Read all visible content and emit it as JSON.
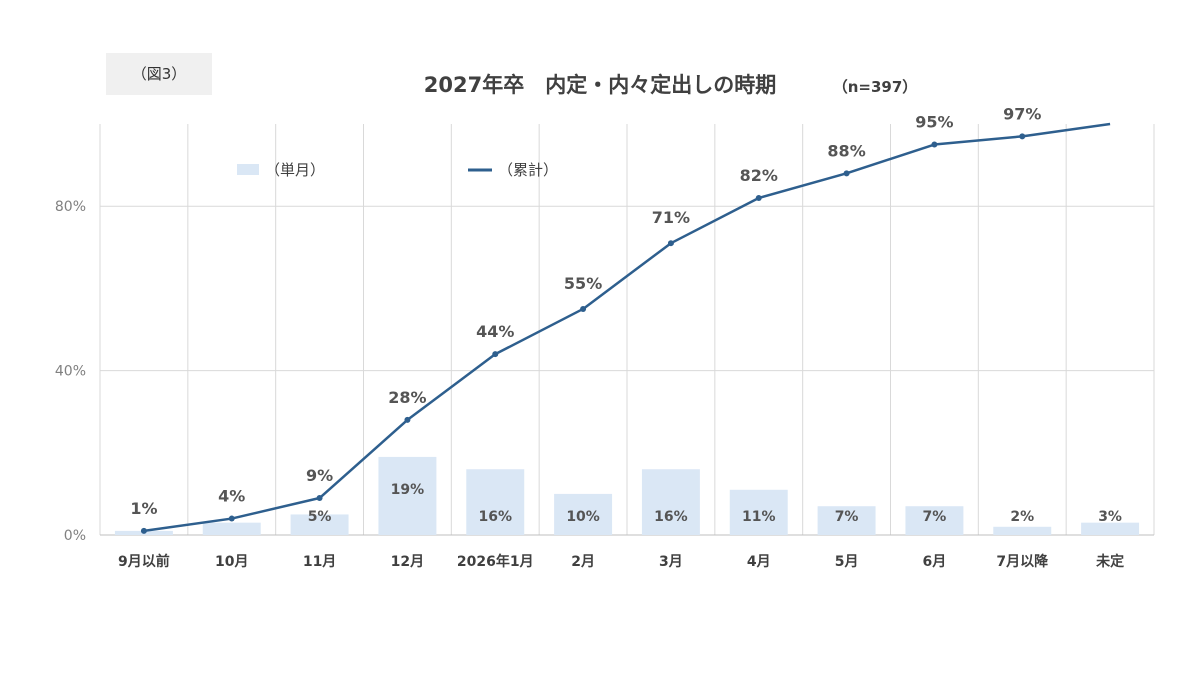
{
  "figure_label": "（図3）",
  "chart_data": {
    "type": "bar",
    "title": "2027年卒　内定・内々定出しの時期",
    "subtitle": "（n=397）",
    "categories": [
      "9月以前",
      "10月",
      "11月",
      "12月",
      "2026年1月",
      "2月",
      "3月",
      "4月",
      "5月",
      "6月",
      "7月以降",
      "未定"
    ],
    "ylim": [
      0,
      100
    ],
    "yticks": [
      0,
      40,
      80
    ],
    "ytick_labels": [
      "0%",
      "40%",
      "80%"
    ],
    "grid": true,
    "legend_position": "top-left",
    "series": [
      {
        "name": "（単月）",
        "type": "bar",
        "color": "#dae7f5",
        "values": [
          1,
          3,
          5,
          19,
          16,
          10,
          16,
          11,
          7,
          7,
          2,
          3
        ],
        "labels": [
          "",
          "",
          "5%",
          "19%",
          "16%",
          "10%",
          "16%",
          "11%",
          "7%",
          "7%",
          "2%",
          "3%"
        ],
        "highlight": [
          "",
          "",
          "",
          "19%",
          "",
          "",
          "",
          "",
          "",
          "",
          "",
          ""
        ]
      },
      {
        "name": "（累計）",
        "type": "line",
        "color": "#2e5f8e",
        "values": [
          1,
          4,
          9,
          28,
          44,
          55,
          71,
          82,
          88,
          95,
          97,
          100
        ],
        "labels": [
          "1%",
          "4%",
          "9%",
          "28%",
          "44%",
          "55%",
          "71%",
          "82%",
          "88%",
          "95%",
          "97%",
          ""
        ],
        "highlight": [
          "",
          "",
          "",
          "",
          "",
          "55%",
          "71%",
          "",
          "",
          "",
          "",
          ""
        ]
      }
    ]
  }
}
